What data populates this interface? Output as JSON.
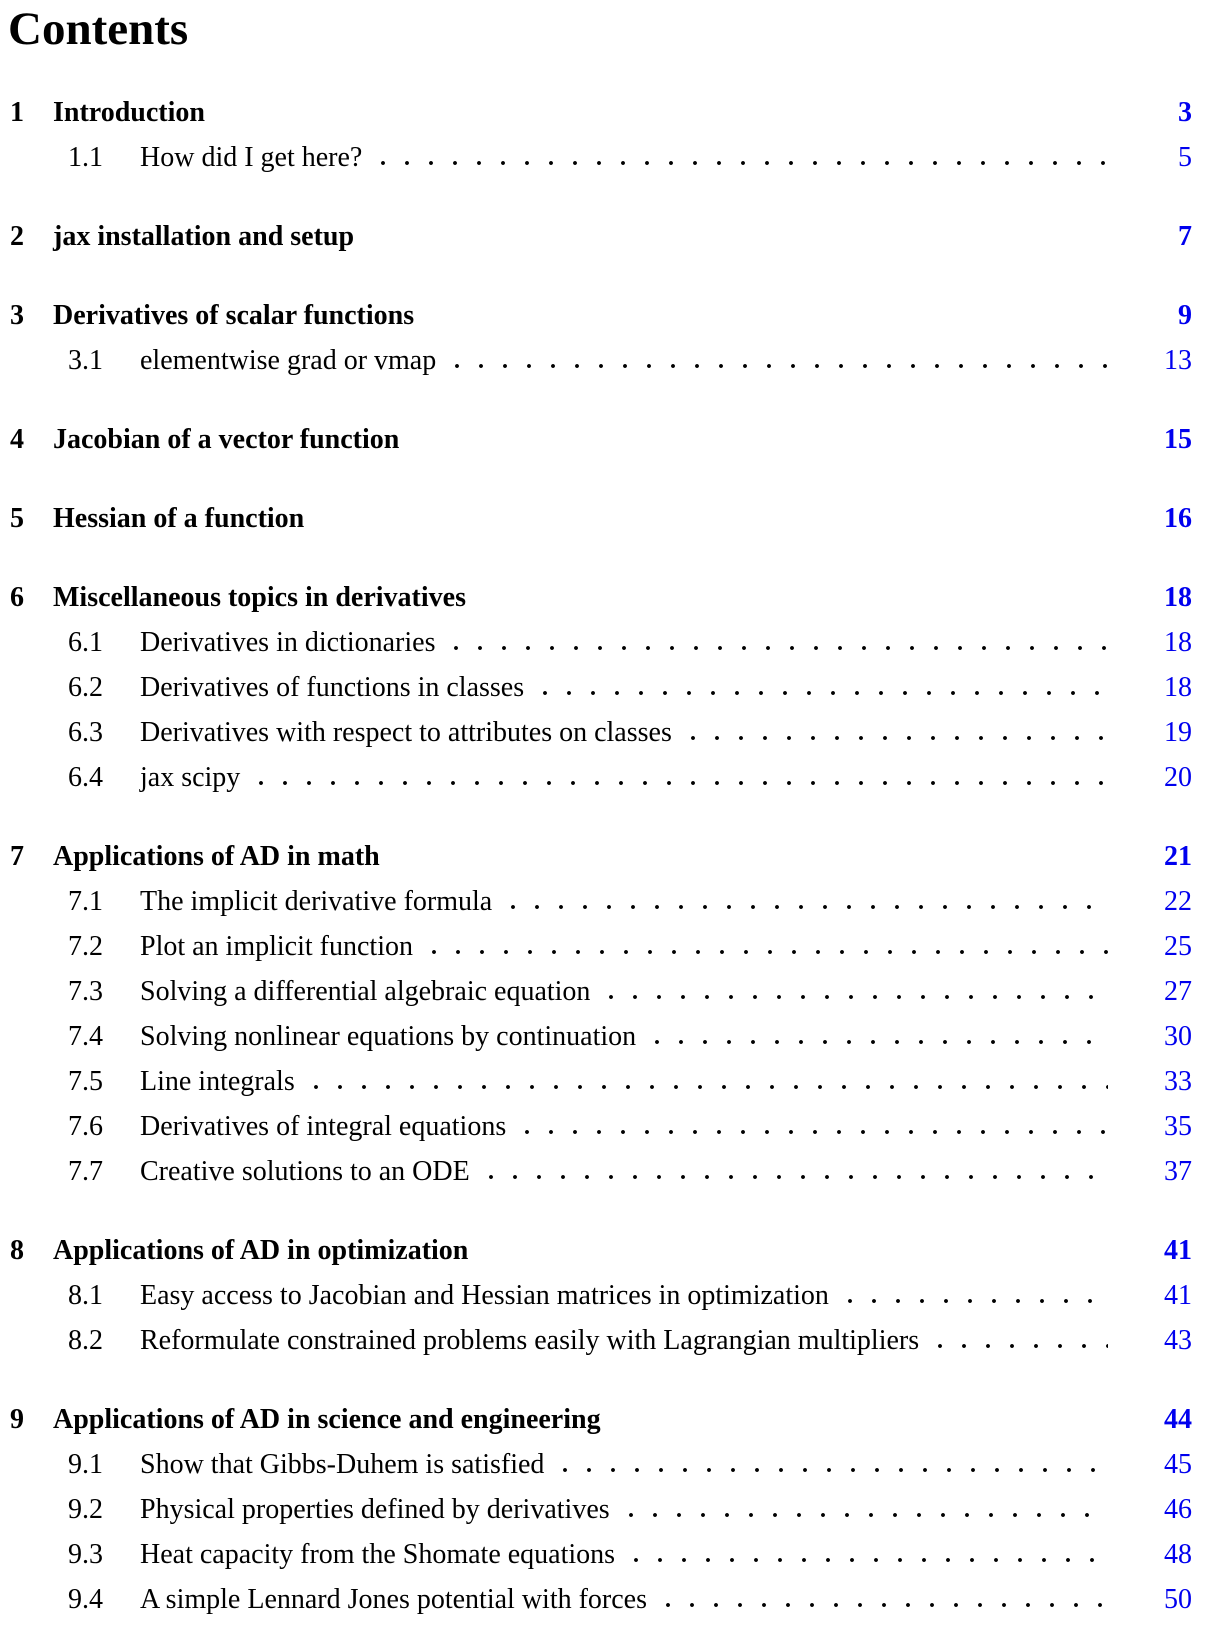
{
  "page": {
    "title": "Contents",
    "link_color": "#0000EE",
    "text_color": "#000000"
  },
  "toc": {
    "sections": [
      {
        "number": "1",
        "title": "Introduction",
        "page": "3",
        "subsections": [
          {
            "number": "1.1",
            "title": "How did I get here?",
            "page": "5"
          }
        ]
      },
      {
        "number": "2",
        "title": "jax installation and setup",
        "page": "7",
        "subsections": []
      },
      {
        "number": "3",
        "title": "Derivatives of scalar functions",
        "page": "9",
        "subsections": [
          {
            "number": "3.1",
            "title": "elementwise grad or vmap",
            "page": "13"
          }
        ]
      },
      {
        "number": "4",
        "title": "Jacobian of a vector function",
        "page": "15",
        "subsections": []
      },
      {
        "number": "5",
        "title": "Hessian of a function",
        "page": "16",
        "subsections": []
      },
      {
        "number": "6",
        "title": "Miscellaneous topics in derivatives",
        "page": "18",
        "subsections": [
          {
            "number": "6.1",
            "title": "Derivatives in dictionaries",
            "page": "18"
          },
          {
            "number": "6.2",
            "title": "Derivatives of functions in classes",
            "page": "18"
          },
          {
            "number": "6.3",
            "title": "Derivatives with respect to attributes on classes",
            "page": "19"
          },
          {
            "number": "6.4",
            "title": "jax scipy",
            "page": "20"
          }
        ]
      },
      {
        "number": "7",
        "title": "Applications of AD in math",
        "page": "21",
        "subsections": [
          {
            "number": "7.1",
            "title": "The implicit derivative formula",
            "page": "22"
          },
          {
            "number": "7.2",
            "title": "Plot an implicit function",
            "page": "25"
          },
          {
            "number": "7.3",
            "title": "Solving a differential algebraic equation",
            "page": "27"
          },
          {
            "number": "7.4",
            "title": "Solving nonlinear equations by continuation",
            "page": "30"
          },
          {
            "number": "7.5",
            "title": "Line integrals",
            "page": "33"
          },
          {
            "number": "7.6",
            "title": "Derivatives of integral equations",
            "page": "35"
          },
          {
            "number": "7.7",
            "title": "Creative solutions to an ODE",
            "page": "37"
          }
        ]
      },
      {
        "number": "8",
        "title": "Applications of AD in optimization",
        "page": "41",
        "subsections": [
          {
            "number": "8.1",
            "title": "Easy access to Jacobian and Hessian matrices in optimization",
            "page": "41"
          },
          {
            "number": "8.2",
            "title": "Reformulate constrained problems easily with Lagrangian multipliers",
            "page": "43"
          }
        ]
      },
      {
        "number": "9",
        "title": "Applications of AD in science and engineering",
        "page": "44",
        "subsections": [
          {
            "number": "9.1",
            "title": "Show that Gibbs-Duhem is satisfied",
            "page": "45"
          },
          {
            "number": "9.2",
            "title": "Physical properties defined by derivatives",
            "page": "46"
          },
          {
            "number": "9.3",
            "title": "Heat capacity from the Shomate equations",
            "page": "48"
          },
          {
            "number": "9.4",
            "title": "A simple Lennard Jones potential with forces",
            "page": "50"
          }
        ]
      }
    ]
  }
}
